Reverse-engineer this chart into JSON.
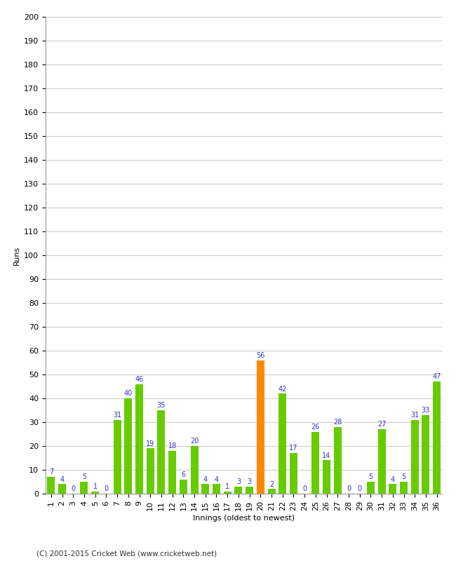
{
  "innings": [
    1,
    2,
    3,
    4,
    5,
    6,
    7,
    8,
    9,
    10,
    11,
    12,
    13,
    14,
    15,
    16,
    17,
    18,
    19,
    20,
    21,
    22,
    23,
    24,
    25,
    26,
    27,
    28,
    29,
    30,
    31,
    32,
    33,
    34,
    35,
    36
  ],
  "values": [
    7,
    4,
    0,
    5,
    1,
    0,
    31,
    40,
    46,
    19,
    35,
    18,
    6,
    20,
    4,
    4,
    1,
    3,
    3,
    56,
    2,
    42,
    17,
    0,
    26,
    14,
    28,
    0,
    0,
    5,
    27,
    4,
    5,
    31,
    33,
    47
  ],
  "colors": [
    "#66cc00",
    "#66cc00",
    "#66cc00",
    "#66cc00",
    "#66cc00",
    "#66cc00",
    "#66cc00",
    "#66cc00",
    "#66cc00",
    "#66cc00",
    "#66cc00",
    "#66cc00",
    "#66cc00",
    "#66cc00",
    "#66cc00",
    "#66cc00",
    "#66cc00",
    "#66cc00",
    "#66cc00",
    "#ff8800",
    "#66cc00",
    "#66cc00",
    "#66cc00",
    "#66cc00",
    "#66cc00",
    "#66cc00",
    "#66cc00",
    "#66cc00",
    "#66cc00",
    "#66cc00",
    "#66cc00",
    "#66cc00",
    "#66cc00",
    "#66cc00",
    "#66cc00",
    "#66cc00"
  ],
  "xlabel": "Innings (oldest to newest)",
  "ylabel": "Runs",
  "ylim": [
    0,
    200
  ],
  "yticks": [
    0,
    10,
    20,
    30,
    40,
    50,
    60,
    70,
    80,
    90,
    100,
    110,
    120,
    130,
    140,
    150,
    160,
    170,
    180,
    190,
    200
  ],
  "label_color": "#3333cc",
  "bar_width": 0.7,
  "background_color": "#ffffff",
  "grid_color": "#cccccc",
  "footer": "(C) 2001-2015 Cricket Web (www.cricketweb.net)",
  "label_fontsize": 7,
  "tick_fontsize": 8,
  "ylabel_fontsize": 8,
  "xlabel_fontsize": 8
}
